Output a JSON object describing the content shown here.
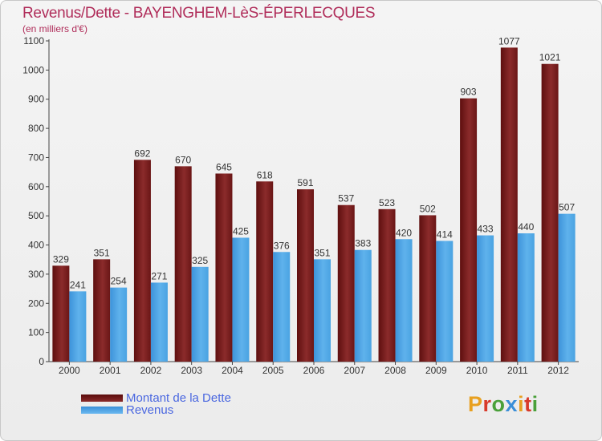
{
  "title": "Revenus/Dette - BAYENGHEM-LèS-ÉPERLECQUES",
  "subtitle": "(en milliers d'€)",
  "chart_data": {
    "type": "bar",
    "categories": [
      "2000",
      "2001",
      "2002",
      "2003",
      "2004",
      "2005",
      "2006",
      "2007",
      "2008",
      "2009",
      "2010",
      "2011",
      "2012"
    ],
    "series": [
      {
        "name": "Montant de la Dette",
        "color": "#7a1c1c",
        "values": [
          329,
          351,
          692,
          670,
          645,
          618,
          591,
          537,
          523,
          502,
          903,
          1077,
          1021
        ]
      },
      {
        "name": "Revenus",
        "color": "#4ba3e3",
        "values": [
          241,
          254,
          271,
          325,
          425,
          376,
          351,
          383,
          420,
          414,
          433,
          440,
          507
        ]
      }
    ],
    "yticks": [
      0,
      100,
      200,
      300,
      400,
      500,
      600,
      700,
      800,
      900,
      1000,
      1100
    ],
    "ylim": [
      0,
      1100
    ],
    "grid": false,
    "legend": "bottom-left"
  },
  "legend": [
    {
      "label": "Montant de la Dette"
    },
    {
      "label": "Revenus"
    }
  ],
  "logo": {
    "text": [
      "P",
      "r",
      "o",
      "x",
      "i",
      "t",
      "i"
    ]
  }
}
